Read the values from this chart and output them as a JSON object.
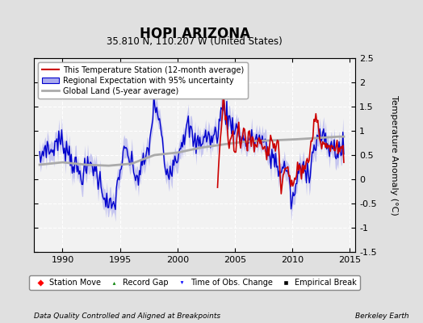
{
  "title": "HOPI ARIZONA",
  "subtitle": "35.810 N, 110.207 W (United States)",
  "ylabel": "Temperature Anomaly (°C)",
  "xlim": [
    1987.5,
    2015.5
  ],
  "ylim": [
    -1.5,
    2.5
  ],
  "yticks": [
    -1.5,
    -1.0,
    -0.5,
    0.0,
    0.5,
    1.0,
    1.5,
    2.0,
    2.5
  ],
  "ytick_labels": [
    "-1.5",
    "-1",
    "-0.5",
    "0",
    "0.5",
    "1",
    "1.5",
    "2",
    "2.5"
  ],
  "xticks": [
    1990,
    1995,
    2000,
    2005,
    2010,
    2015
  ],
  "background_color": "#e0e0e0",
  "plot_bg_color": "#f2f2f2",
  "grid_color": "#ffffff",
  "blue_line_color": "#0000cc",
  "blue_fill_color": "#aaaaee",
  "red_line_color": "#cc0000",
  "gray_line_color": "#aaaaaa",
  "footer_left": "Data Quality Controlled and Aligned at Breakpoints",
  "footer_right": "Berkeley Earth",
  "legend_entries": [
    "This Temperature Station (12-month average)",
    "Regional Expectation with 95% uncertainty",
    "Global Land (5-year average)"
  ],
  "legend_marker_entries": [
    "Station Move",
    "Record Gap",
    "Time of Obs. Change",
    "Empirical Break"
  ],
  "regional_t": [
    1988.0,
    1988.5,
    1989.0,
    1989.5,
    1990.0,
    1990.5,
    1991.0,
    1991.5,
    1992.0,
    1992.5,
    1993.0,
    1993.5,
    1994.0,
    1994.5,
    1995.0,
    1995.5,
    1996.0,
    1996.5,
    1997.0,
    1997.5,
    1998.0,
    1998.5,
    1999.0,
    1999.5,
    2000.0,
    2000.5,
    2001.0,
    2001.5,
    2002.0,
    2002.5,
    2003.0,
    2003.5,
    2004.0,
    2004.5,
    2005.0,
    2005.5,
    2006.0,
    2006.5,
    2007.0,
    2007.5,
    2008.0,
    2008.5,
    2009.0,
    2009.5,
    2010.0,
    2010.5,
    2011.0,
    2011.5,
    2012.0,
    2012.5,
    2013.0,
    2013.5,
    2014.0
  ],
  "regional_v": [
    0.35,
    0.7,
    0.55,
    0.8,
    0.75,
    0.6,
    0.3,
    0.1,
    0.15,
    0.35,
    0.1,
    -0.2,
    -0.6,
    -0.55,
    0.2,
    0.6,
    0.3,
    0.0,
    0.3,
    0.6,
    1.6,
    1.1,
    0.15,
    0.3,
    0.5,
    0.9,
    1.1,
    0.7,
    0.8,
    0.9,
    0.8,
    1.0,
    1.55,
    1.2,
    1.1,
    0.9,
    0.75,
    0.8,
    0.85,
    0.75,
    0.5,
    0.4,
    0.15,
    0.3,
    -0.55,
    0.1,
    0.25,
    0.2,
    0.75,
    0.9,
    0.7,
    0.65,
    0.6
  ],
  "regional_unc": [
    0.18,
    0.18,
    0.18,
    0.18,
    0.18,
    0.18,
    0.18,
    0.18,
    0.18,
    0.18,
    0.18,
    0.18,
    0.18,
    0.18,
    0.18,
    0.18,
    0.18,
    0.18,
    0.18,
    0.18,
    0.18,
    0.18,
    0.18,
    0.18,
    0.18,
    0.18,
    0.18,
    0.18,
    0.18,
    0.18,
    0.18,
    0.18,
    0.18,
    0.18,
    0.18,
    0.18,
    0.18,
    0.18,
    0.18,
    0.18,
    0.18,
    0.18,
    0.18,
    0.18,
    0.18,
    0.18,
    0.18,
    0.18,
    0.18,
    0.18,
    0.18,
    0.18,
    0.18
  ],
  "global_t": [
    1988.0,
    1990.0,
    1992.0,
    1994.0,
    1996.0,
    1998.0,
    2000.0,
    2002.0,
    2004.0,
    2006.0,
    2008.0,
    2010.0,
    2012.0,
    2014.0
  ],
  "global_v": [
    0.3,
    0.35,
    0.3,
    0.28,
    0.32,
    0.5,
    0.55,
    0.65,
    0.72,
    0.78,
    0.8,
    0.82,
    0.85,
    0.88
  ],
  "station_t": [
    2003.5,
    2004.0,
    2004.3,
    2004.5,
    2004.8,
    2005.0,
    2005.3,
    2005.5,
    2005.8,
    2006.0,
    2006.3,
    2006.5,
    2006.8,
    2007.0,
    2007.3,
    2007.5,
    2007.8,
    2008.0,
    2008.3,
    2008.5,
    2008.8,
    2009.0,
    2009.3,
    2009.5,
    2009.8,
    2010.0,
    2010.3,
    2010.5,
    2010.8,
    2011.0,
    2011.3,
    2011.5,
    2011.8,
    2012.0,
    2012.3,
    2012.5,
    2012.8,
    2013.0,
    2013.5,
    2014.0
  ],
  "station_v": [
    -0.1,
    1.75,
    1.1,
    0.65,
    1.1,
    0.5,
    1.1,
    0.75,
    1.15,
    0.55,
    0.85,
    0.9,
    0.7,
    0.75,
    0.8,
    0.65,
    0.6,
    0.65,
    0.9,
    0.55,
    0.8,
    -0.05,
    0.15,
    0.25,
    0.1,
    -0.15,
    -0.1,
    0.35,
    0.15,
    0.2,
    0.3,
    0.55,
    0.9,
    1.5,
    1.1,
    0.75,
    0.8,
    0.65,
    0.65,
    0.6
  ]
}
